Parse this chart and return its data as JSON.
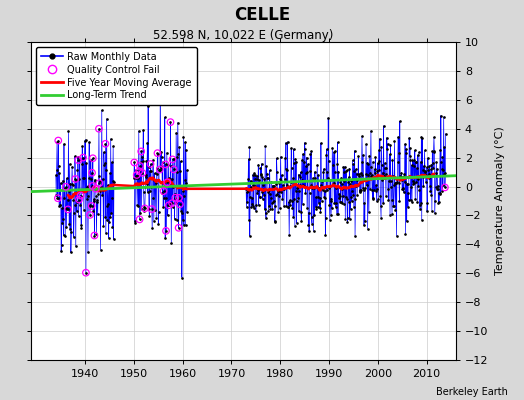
{
  "title": "CELLE",
  "subtitle": "52.598 N, 10.022 E (Germany)",
  "ylabel": "Temperature Anomaly (°C)",
  "credit": "Berkeley Earth",
  "fig_bg_color": "#d8d8d8",
  "plot_bg_color": "#ffffff",
  "ylim": [
    -12,
    10
  ],
  "yticks": [
    -12,
    -10,
    -8,
    -6,
    -4,
    -2,
    0,
    2,
    4,
    6,
    8,
    10
  ],
  "xticks": [
    1940,
    1950,
    1960,
    1970,
    1980,
    1990,
    2000,
    2010
  ],
  "xlim": [
    1929,
    2016
  ],
  "seed_main": 42,
  "seed_qc": 15
}
